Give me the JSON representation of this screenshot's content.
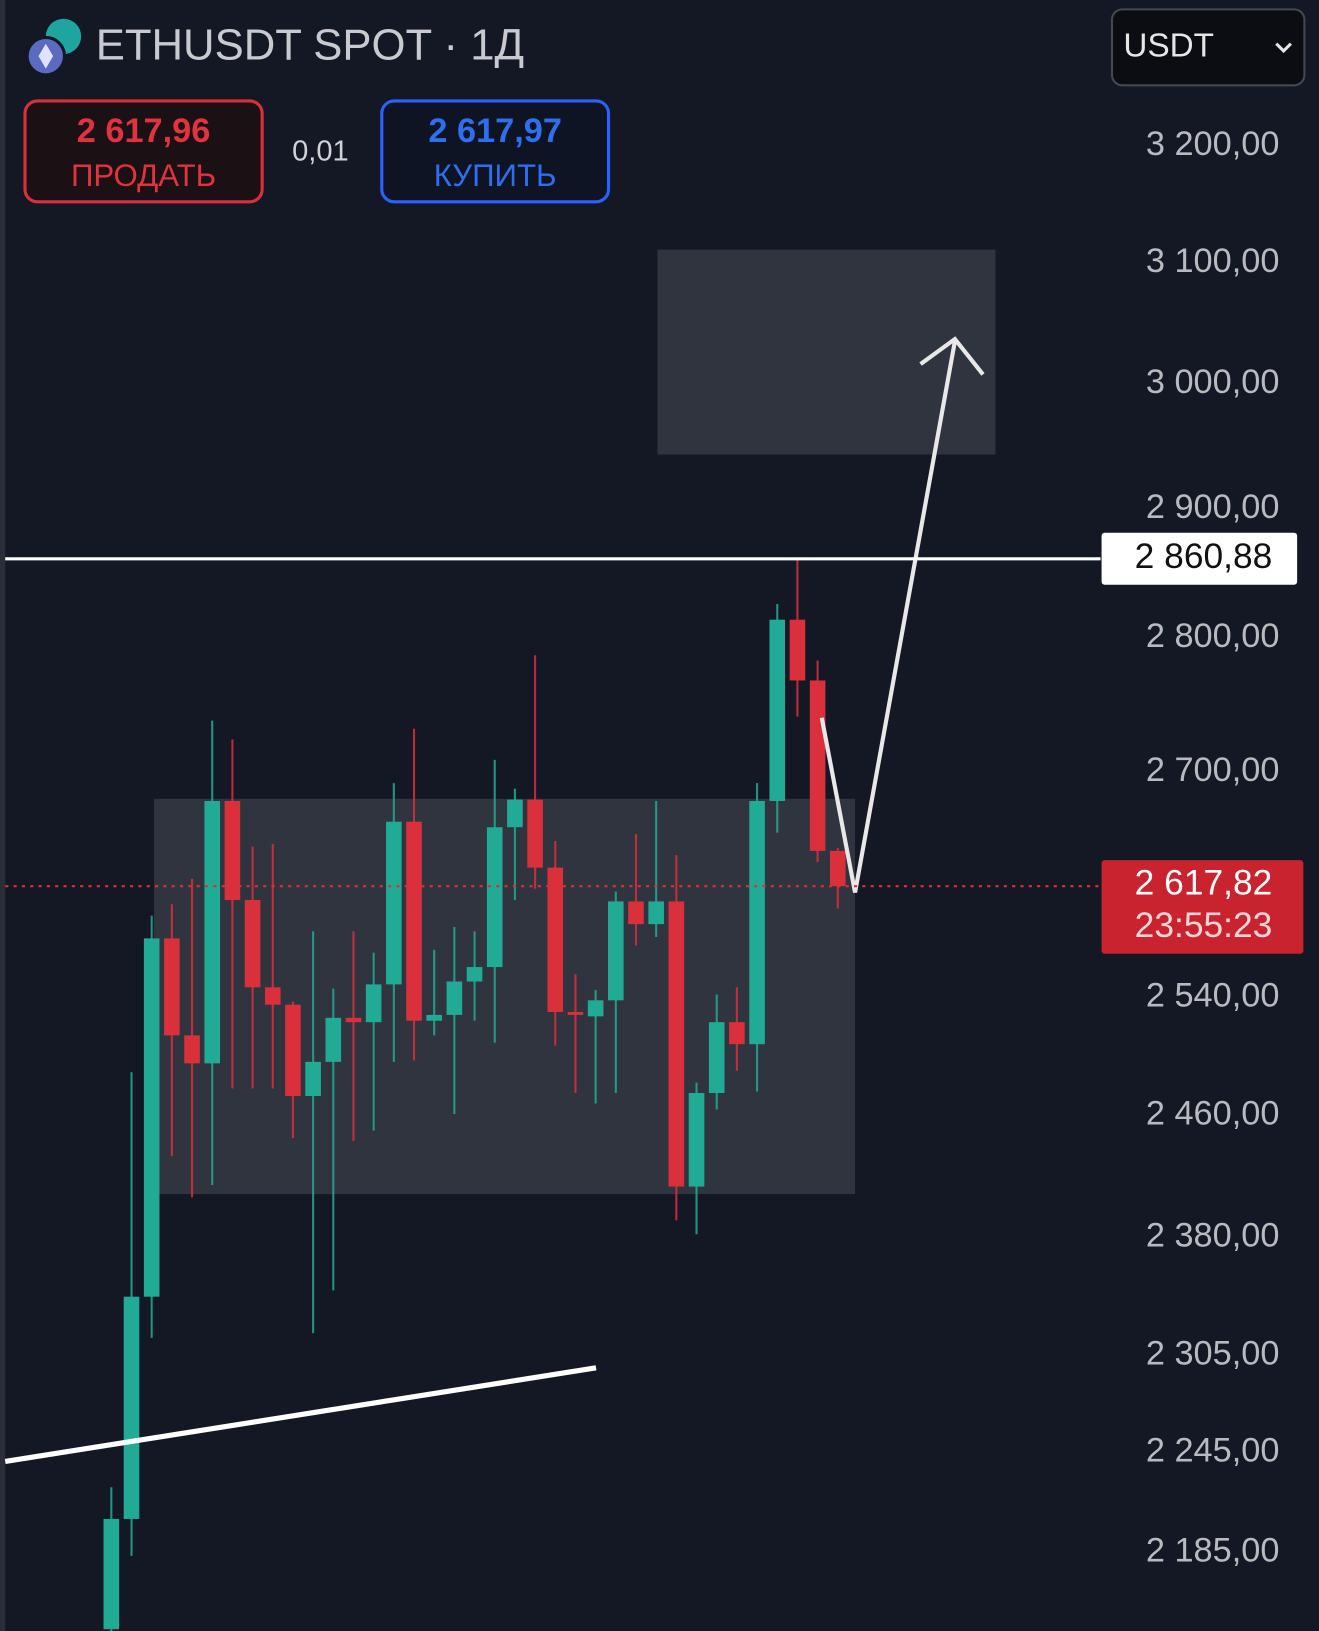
{
  "chart_data": {
    "type": "candlestick",
    "title": "ETHUSDT SPOT · 1Д",
    "currency": "USDT",
    "sell": {
      "price": "2 617,96",
      "label": "ПРОДАТЬ"
    },
    "spread": "0,01",
    "buy": {
      "price": "2 617,97",
      "label": "КУПИТЬ"
    },
    "log_scale": true,
    "up_color": "#22ab94",
    "down_color": "#d9303c",
    "categories": [
      null,
      null,
      null,
      null,
      null,
      null,
      null,
      null,
      null,
      null,
      null,
      null,
      null,
      null,
      null,
      null,
      null,
      null,
      null,
      null,
      null,
      null,
      null,
      null,
      null,
      null,
      null,
      null,
      null,
      null,
      null,
      null,
      null,
      null,
      null,
      null,
      null
    ],
    "open": [
      2140,
      2205,
      2342,
      2581,
      2514,
      2495,
      2679,
      2608,
      2547,
      2535,
      2473,
      2496,
      2526,
      2523,
      2549,
      2664,
      2524,
      2528,
      2551,
      2561,
      2660,
      2680,
      2631,
      2530,
      2527,
      2538,
      2607,
      2591,
      2607,
      2413,
      2475,
      2523,
      2508,
      2679,
      2814,
      2768,
      2643
    ],
    "high": [
      2224,
      2489,
      2597,
      2605,
      2623,
      2738,
      2724,
      2646,
      2648,
      2537,
      2586,
      2546,
      2586,
      2571,
      2692,
      2732,
      2573,
      2589,
      2586,
      2709,
      2688,
      2787,
      2650,
      2556,
      2545,
      2614,
      2655,
      2679,
      2640,
      2482,
      2542,
      2547,
      2692,
      2826,
      2861,
      2783,
      2645
    ],
    "low": [
      2130,
      2183,
      2316,
      2433,
      2406,
      2414,
      2478,
      2478,
      2478,
      2445,
      2319,
      2346,
      2443,
      2450,
      2496,
      2497,
      2514,
      2461,
      2524,
      2509,
      2608,
      2616,
      2507,
      2475,
      2468,
      2475,
      2576,
      2582,
      2391,
      2382,
      2464,
      2490,
      2476,
      2656,
      2741,
      2635,
      2602
    ],
    "close": [
      2205,
      2342,
      2581,
      2514,
      2495,
      2679,
      2608,
      2547,
      2535,
      2473,
      2496,
      2526,
      2523,
      2549,
      2664,
      2524,
      2528,
      2551,
      2561,
      2660,
      2680,
      2631,
      2530,
      2528,
      2538,
      2607,
      2591,
      2607,
      2413,
      2475,
      2523,
      2508,
      2679,
      2814,
      2768,
      2643,
      2617.82
    ],
    "ylim": [
      2139,
      3329
    ],
    "yticks": [
      {
        "value": 3200,
        "label": "3 200,00"
      },
      {
        "value": 3100,
        "label": "3 100,00"
      },
      {
        "value": 3000,
        "label": "3 000,00"
      },
      {
        "value": 2900,
        "label": "2 900,00"
      },
      {
        "value": 2800,
        "label": "2 800,00"
      },
      {
        "value": 2700,
        "label": "2 700,00"
      },
      {
        "value": 2540,
        "label": "2 540,00"
      },
      {
        "value": 2460,
        "label": "2 460,00"
      },
      {
        "value": 2380,
        "label": "2 380,00"
      },
      {
        "value": 2305,
        "label": "2 305,00"
      },
      {
        "value": 2245,
        "label": "2 245,00"
      },
      {
        "value": 2185,
        "label": "2 185,00"
      }
    ],
    "price_line": {
      "value": 2860.88,
      "label": "2 860,88"
    },
    "last_price": {
      "value": 2617.82,
      "label": "2 617,82"
    },
    "countdown": "23:55:23"
  }
}
